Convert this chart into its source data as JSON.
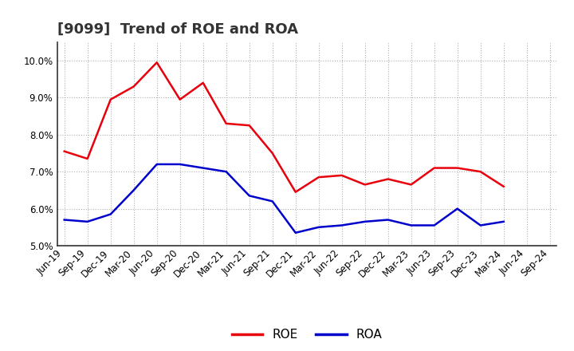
{
  "title": "[9099]  Trend of ROE and ROA",
  "x_labels": [
    "Jun-19",
    "Sep-19",
    "Dec-19",
    "Mar-20",
    "Jun-20",
    "Sep-20",
    "Dec-20",
    "Mar-21",
    "Jun-21",
    "Sep-21",
    "Dec-21",
    "Mar-22",
    "Jun-22",
    "Sep-22",
    "Dec-22",
    "Mar-23",
    "Jun-23",
    "Sep-23",
    "Dec-23",
    "Mar-24",
    "Jun-24",
    "Sep-24"
  ],
  "roe": [
    7.55,
    7.35,
    8.95,
    9.3,
    9.95,
    8.95,
    9.4,
    8.3,
    8.25,
    7.5,
    6.45,
    6.85,
    6.9,
    6.65,
    6.8,
    6.65,
    7.1,
    7.1,
    7.0,
    6.6,
    null,
    null
  ],
  "roa": [
    5.7,
    5.65,
    5.85,
    6.5,
    7.2,
    7.2,
    7.1,
    7.0,
    6.35,
    6.2,
    5.35,
    5.5,
    5.55,
    5.65,
    5.7,
    5.55,
    5.55,
    6.0,
    5.55,
    5.65,
    null,
    null
  ],
  "roe_color": "#e8000d",
  "roa_color": "#0000cc",
  "bg_color": "#ffffff",
  "grid_color": "#b0b0b0",
  "ylim_min": 5.0,
  "ylim_max": 10.5,
  "yticks": [
    5.0,
    6.0,
    7.0,
    8.0,
    9.0,
    10.0
  ],
  "legend_labels": [
    "ROE",
    "ROA"
  ],
  "title_fontsize": 13,
  "tick_fontsize": 8.5
}
